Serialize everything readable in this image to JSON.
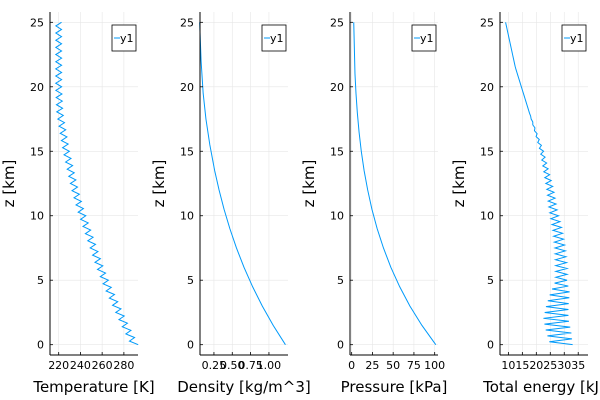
{
  "chart_data": [
    {
      "type": "line",
      "xlabel": "Temperature [K]",
      "ylabel": "z [km]",
      "xlim": [
        212,
        293
      ],
      "ylim": [
        -0.8,
        25.8
      ],
      "xticks": [
        220,
        240,
        260,
        280
      ],
      "xtick_labels": [
        "220",
        "240",
        "260",
        "280"
      ],
      "yticks": [
        0,
        5,
        10,
        15,
        20,
        25
      ],
      "ytick_labels": [
        "0",
        "5",
        "10",
        "15",
        "20",
        "25"
      ],
      "legend": "top-right",
      "grid": true,
      "color": "#009AFA",
      "series": [
        {
          "name": "y1",
          "zigzag": true,
          "x": [
            290,
            281,
            273,
            265,
            258,
            252,
            246,
            240,
            235,
            231,
            227,
            224,
            221,
            220,
            220,
            220
          ],
          "y": [
            0,
            1.5,
            3,
            4.5,
            6,
            7.5,
            9,
            10.5,
            12,
            13.5,
            15,
            16.5,
            18,
            20,
            22.5,
            25
          ]
        }
      ]
    },
    {
      "type": "line",
      "xlabel": "Density [kg/m^3]",
      "ylabel": "z [km]",
      "xlim": [
        0.06,
        1.26
      ],
      "ylim": [
        -0.8,
        25.8
      ],
      "xticks": [
        0.25,
        0.5,
        0.75,
        1.0
      ],
      "xtick_labels": [
        "0.25",
        "0.50",
        "0.75",
        "1.00"
      ],
      "yticks": [
        0,
        5,
        10,
        15,
        20,
        25
      ],
      "ytick_labels": [
        "0",
        "5",
        "10",
        "15",
        "20",
        "25"
      ],
      "legend": "top-right",
      "grid": true,
      "color": "#009AFA",
      "series": [
        {
          "name": "y1",
          "x": [
            1.225,
            1.058,
            0.909,
            0.777,
            0.66,
            0.557,
            0.467,
            0.388,
            0.32,
            0.26,
            0.194,
            0.141,
            0.103,
            0.075,
            0.055
          ],
          "y": [
            0,
            1.5,
            3,
            4.5,
            6,
            7.5,
            9,
            10.5,
            12,
            13.5,
            15.5,
            17.5,
            19.5,
            22,
            25
          ]
        }
      ]
    },
    {
      "type": "line",
      "xlabel": "Pressure [kPa]",
      "ylabel": "z [km]",
      "xlim": [
        -2,
        104
      ],
      "ylim": [
        -0.8,
        25.8
      ],
      "xticks": [
        0,
        25,
        50,
        75,
        100
      ],
      "xtick_labels": [
        "0",
        "25",
        "50",
        "75",
        "100"
      ],
      "yticks": [
        0,
        5,
        10,
        15,
        20,
        25
      ],
      "ytick_labels": [
        "0",
        "5",
        "10",
        "15",
        "20",
        "25"
      ],
      "legend": "top-right",
      "grid": true,
      "color": "#009AFA",
      "series": [
        {
          "name": "y1",
          "x": [
            101.3,
            84.6,
            70.1,
            57.8,
            47.2,
            38.3,
            30.7,
            24.4,
            19.3,
            15.0,
            11.6,
            8.9,
            6.8,
            5.2,
            4.0,
            2.5
          ],
          "y": [
            0,
            1.5,
            3,
            4.5,
            6,
            7.5,
            9,
            10.5,
            12,
            13.5,
            15,
            16.5,
            18,
            19.5,
            21,
            25
          ]
        }
      ]
    },
    {
      "type": "line",
      "xlabel": "Total energy [kJ]",
      "ylabel": "z [km]",
      "xlim": [
        7,
        38.5
      ],
      "ylim": [
        -0.8,
        25.8
      ],
      "xticks": [
        10,
        15,
        20,
        25,
        30,
        35
      ],
      "xtick_labels": [
        "10",
        "15",
        "20",
        "25",
        "30",
        "35"
      ],
      "yticks": [
        0,
        5,
        10,
        15,
        20,
        25
      ],
      "ytick_labels": [
        "0",
        "5",
        "10",
        "15",
        "20",
        "25"
      ],
      "legend": "top-right",
      "grid": true,
      "color": "#009AFA",
      "series": [
        {
          "name": "y1",
          "x": [
            29,
            28,
            27,
            27.5,
            28.5,
            29,
            29,
            28.5,
            27.5,
            26,
            25,
            22,
            17.5,
            12.5,
            9
          ],
          "y": [
            0,
            1,
            2,
            3,
            4,
            5,
            6,
            7.5,
            9,
            10.5,
            12,
            15,
            18,
            21.5,
            25
          ],
          "x_spread": [
            4,
            4.5,
            4.5,
            4,
            3.5,
            2,
            2,
            1.8,
            1.6,
            1.4,
            1.2,
            0.6,
            0,
            0,
            0
          ]
        }
      ]
    }
  ]
}
